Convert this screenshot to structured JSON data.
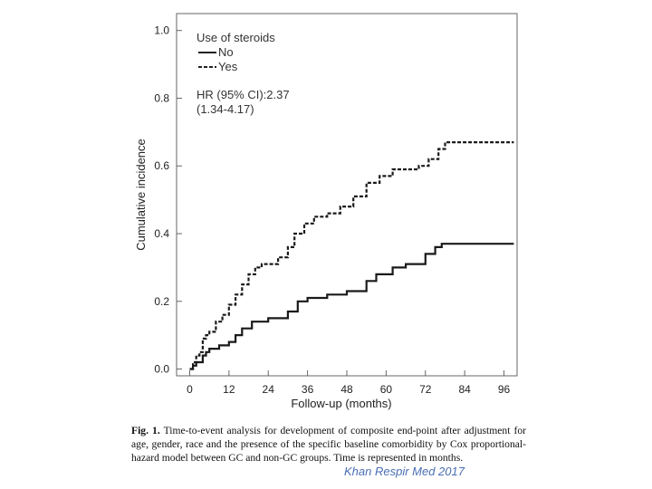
{
  "chart_data": {
    "type": "line",
    "xlabel": "Follow-up (months)",
    "ylabel": "Cumulative incidence",
    "xlim": [
      -4,
      100
    ],
    "ylim": [
      -0.02,
      1.05
    ],
    "x_ticks": [
      0,
      12,
      24,
      36,
      48,
      60,
      72,
      84,
      96
    ],
    "y_ticks": [
      {
        "v": 0.0,
        "label": "0.0"
      },
      {
        "v": 0.2,
        "label": "0.2"
      },
      {
        "v": 0.4,
        "label": "0.4"
      },
      {
        "v": 0.6,
        "label": "0.6"
      },
      {
        "v": 0.8,
        "label": "0.8"
      },
      {
        "v": 1.0,
        "label": "1.0"
      }
    ],
    "legend": {
      "title": "Use of steroids",
      "hr_line1": "HR (95% CI):2.37",
      "hr_line2": "(1.34-4.17)"
    },
    "series": [
      {
        "name": "No",
        "style": "solid",
        "points": [
          [
            0,
            0
          ],
          [
            1,
            0.01
          ],
          [
            2,
            0.02
          ],
          [
            3,
            0.02
          ],
          [
            4,
            0.04
          ],
          [
            5,
            0.05
          ],
          [
            6,
            0.06
          ],
          [
            9,
            0.07
          ],
          [
            12,
            0.08
          ],
          [
            14,
            0.1
          ],
          [
            16,
            0.12
          ],
          [
            19,
            0.14
          ],
          [
            24,
            0.15
          ],
          [
            30,
            0.17
          ],
          [
            33,
            0.2
          ],
          [
            36,
            0.21
          ],
          [
            42,
            0.22
          ],
          [
            48,
            0.23
          ],
          [
            54,
            0.26
          ],
          [
            57,
            0.28
          ],
          [
            62,
            0.3
          ],
          [
            66,
            0.31
          ],
          [
            72,
            0.34
          ],
          [
            75,
            0.36
          ],
          [
            77,
            0.37
          ],
          [
            99,
            0.37
          ]
        ]
      },
      {
        "name": "Yes",
        "style": "dashed",
        "points": [
          [
            0,
            0
          ],
          [
            1,
            0.02
          ],
          [
            2,
            0.04
          ],
          [
            3,
            0.05
          ],
          [
            4,
            0.09
          ],
          [
            5,
            0.1
          ],
          [
            6,
            0.11
          ],
          [
            8,
            0.14
          ],
          [
            10,
            0.16
          ],
          [
            12,
            0.19
          ],
          [
            14,
            0.22
          ],
          [
            16,
            0.25
          ],
          [
            18,
            0.28
          ],
          [
            20,
            0.3
          ],
          [
            22,
            0.31
          ],
          [
            24,
            0.31
          ],
          [
            27,
            0.33
          ],
          [
            30,
            0.36
          ],
          [
            32,
            0.4
          ],
          [
            35,
            0.43
          ],
          [
            38,
            0.45
          ],
          [
            42,
            0.46
          ],
          [
            46,
            0.48
          ],
          [
            50,
            0.51
          ],
          [
            54,
            0.55
          ],
          [
            58,
            0.57
          ],
          [
            62,
            0.59
          ],
          [
            66,
            0.59
          ],
          [
            70,
            0.6
          ],
          [
            73,
            0.62
          ],
          [
            76,
            0.65
          ],
          [
            78,
            0.67
          ],
          [
            80,
            0.67
          ],
          [
            99,
            0.67
          ]
        ]
      }
    ]
  },
  "caption": {
    "label": "Fig. 1.",
    "text": "Time-to-event analysis for development of composite end-point after adjustment for age, gender, race and the presence of the specific baseline comorbidity by Cox proportional-hazard model between GC and non-GC groups. Time is represented in months."
  },
  "source": "Khan Respir Med 2017"
}
